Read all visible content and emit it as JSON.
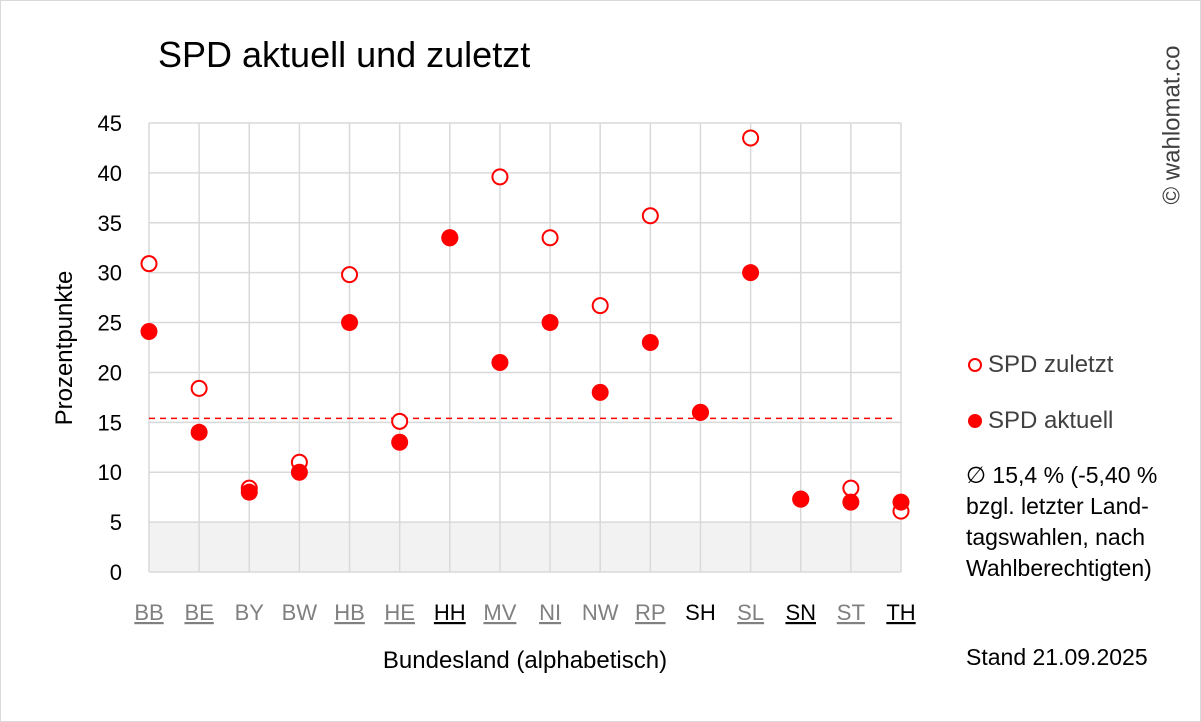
{
  "chart_data": {
    "type": "scatter",
    "title": "SPD aktuell und zuletzt",
    "xlabel": "Bundesland (alphabetisch)",
    "ylabel": "Prozentpunkte",
    "ylim": [
      0,
      45
    ],
    "yticks": [
      0,
      5,
      10,
      15,
      20,
      25,
      30,
      35,
      40,
      45
    ],
    "grid": true,
    "shaded_band": [
      0,
      5
    ],
    "average_line": 15.4,
    "categories": [
      "BB",
      "BE",
      "BY",
      "BW",
      "HB",
      "HE",
      "HH",
      "MV",
      "NI",
      "NW",
      "RP",
      "SH",
      "SL",
      "SN",
      "ST",
      "TH"
    ],
    "category_styles": [
      {
        "color": "#808080",
        "underline": true
      },
      {
        "color": "#808080",
        "underline": true
      },
      {
        "color": "#808080",
        "underline": false
      },
      {
        "color": "#808080",
        "underline": false
      },
      {
        "color": "#808080",
        "underline": true
      },
      {
        "color": "#808080",
        "underline": true
      },
      {
        "color": "#000000",
        "underline": true
      },
      {
        "color": "#808080",
        "underline": true
      },
      {
        "color": "#808080",
        "underline": true
      },
      {
        "color": "#808080",
        "underline": false
      },
      {
        "color": "#808080",
        "underline": true
      },
      {
        "color": "#000000",
        "underline": false
      },
      {
        "color": "#808080",
        "underline": true
      },
      {
        "color": "#000000",
        "underline": true
      },
      {
        "color": "#808080",
        "underline": true
      },
      {
        "color": "#000000",
        "underline": true
      }
    ],
    "series": [
      {
        "name": "SPD zuletzt",
        "marker": "open-circle",
        "color": "#ff0000",
        "values": [
          30.9,
          18.4,
          8.4,
          11.0,
          29.8,
          15.1,
          33.5,
          39.6,
          33.5,
          26.7,
          35.7,
          16.0,
          43.5,
          7.3,
          8.4,
          6.1
        ]
      },
      {
        "name": "SPD aktuell",
        "marker": "filled-circle",
        "color": "#ff0000",
        "values": [
          24.1,
          14.0,
          8.0,
          10.0,
          25.0,
          13.0,
          33.5,
          21.0,
          25.0,
          18.0,
          23.0,
          16.0,
          30.0,
          7.3,
          7.0,
          7.0
        ]
      }
    ],
    "legend": {
      "placement": "right"
    }
  },
  "legend": {
    "zuletzt_label": "SPD zuletzt",
    "aktuell_label": "SPD aktuell"
  },
  "note": "∅ 15,4 % (-5,40 % bzgl. letzter Land-tagswahlen, nach Wahlberechtigten)",
  "stand": "Stand 21.09.2025",
  "watermark": "© wahlomat.co"
}
